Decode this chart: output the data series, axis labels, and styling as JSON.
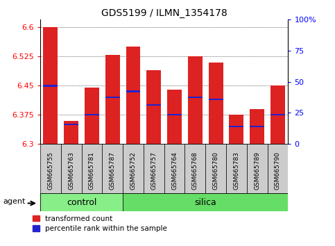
{
  "title": "GDS5199 / ILMN_1354178",
  "samples": [
    "GSM665755",
    "GSM665763",
    "GSM665781",
    "GSM665787",
    "GSM665752",
    "GSM665757",
    "GSM665764",
    "GSM665768",
    "GSM665780",
    "GSM665783",
    "GSM665789",
    "GSM665790"
  ],
  "bar_tops": [
    6.6,
    6.36,
    6.445,
    6.53,
    6.55,
    6.49,
    6.44,
    6.525,
    6.51,
    6.375,
    6.39,
    6.45
  ],
  "bar_base": 6.3,
  "blue_positions": [
    6.45,
    6.35,
    6.375,
    6.42,
    6.435,
    6.4,
    6.375,
    6.42,
    6.415,
    6.345,
    6.345,
    6.375
  ],
  "ylim": [
    6.3,
    6.62
  ],
  "yticks_left": [
    6.3,
    6.375,
    6.45,
    6.525,
    6.6
  ],
  "yticks_right": [
    0,
    25,
    50,
    75,
    100
  ],
  "bar_color": "#dd2222",
  "blue_color": "#2222cc",
  "bar_width": 0.7,
  "n_control": 4,
  "n_total": 12,
  "control_color": "#88ee88",
  "silica_color": "#66dd66",
  "agent_label": "agent",
  "group_label_control": "control",
  "group_label_silica": "silica",
  "legend_red": "transformed count",
  "legend_blue": "percentile rank within the sample",
  "gray_cell": "#cccccc",
  "figsize": [
    4.83,
    3.54
  ],
  "dpi": 100
}
